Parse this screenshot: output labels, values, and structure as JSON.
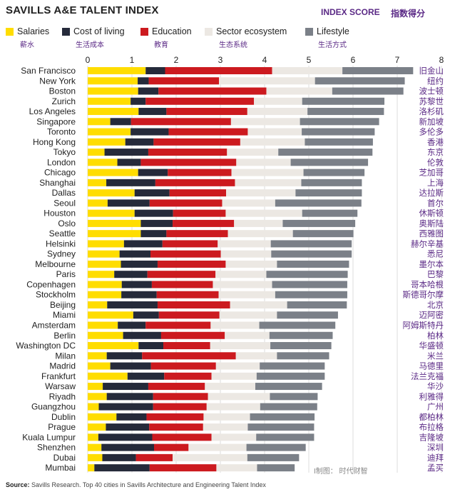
{
  "header": {
    "title": "SAVILLS A&E TALENT INDEX",
    "index_score": "INDEX SCORE",
    "index_score_cn": "指数得分"
  },
  "source": {
    "label": "Source:",
    "text": "Savills Research. Top 40 cities in Savills Architecture and Engineering Talent Index"
  },
  "watermark": "I制图： 时代财智",
  "chart_data": {
    "type": "bar",
    "orientation": "horizontal",
    "stacked": true,
    "title": "SAVILLS A&E TALENT INDEX",
    "xlabel": "INDEX SCORE",
    "xlim": [
      0,
      8
    ],
    "xticks": [
      "0",
      "1",
      "2",
      "3",
      "4",
      "5",
      "6",
      "7",
      "8"
    ],
    "grid": true,
    "legend": "top",
    "series": [
      {
        "name": "Salaries",
        "name_cn": "薪水",
        "color": "#ffdd00"
      },
      {
        "name": "Cost of living",
        "name_cn": "生活成本",
        "color": "#252a3a"
      },
      {
        "name": "Education",
        "name_cn": "教育",
        "color": "#cc1a1f"
      },
      {
        "name": "Sector ecosystem",
        "name_cn": "生态系统",
        "color": "#ece8e3"
      },
      {
        "name": "Lifestyle",
        "name_cn": "生活方式",
        "color": "#7b8088"
      }
    ],
    "categories": [
      {
        "city": "San Francisco",
        "cn": "旧金山",
        "values": [
          1.31,
          0.44,
          2.42,
          1.59,
          1.6
        ]
      },
      {
        "city": "New York",
        "cn": "纽约",
        "values": [
          1.13,
          0.25,
          1.59,
          2.17,
          2.03
        ]
      },
      {
        "city": "Boston",
        "cn": "波士顿",
        "values": [
          1.14,
          0.46,
          2.44,
          1.49,
          1.61
        ]
      },
      {
        "city": "Zurich",
        "cn": "苏黎世",
        "values": [
          0.97,
          0.34,
          2.45,
          1.09,
          1.86
        ]
      },
      {
        "city": "Los Angeles",
        "cn": "洛杉矶",
        "values": [
          1.15,
          0.63,
          1.83,
          1.36,
          1.73
        ]
      },
      {
        "city": "Singapore",
        "cn": "新加坡",
        "values": [
          0.51,
          0.47,
          2.26,
          1.56,
          1.79
        ]
      },
      {
        "city": "Toronto",
        "cn": "多伦多",
        "values": [
          0.97,
          0.86,
          1.79,
          1.22,
          1.65
        ]
      },
      {
        "city": "Hong Kong",
        "cn": "香港",
        "values": [
          0.85,
          0.64,
          1.96,
          1.46,
          1.54
        ]
      },
      {
        "city": "Tokyo",
        "cn": "东京",
        "values": [
          0.38,
          0.99,
          1.78,
          1.16,
          2.13
        ]
      },
      {
        "city": "London",
        "cn": "伦敦",
        "values": [
          0.67,
          0.53,
          2.16,
          1.23,
          1.75
        ]
      },
      {
        "city": "Chicago",
        "cn": "芝加哥",
        "values": [
          1.14,
          0.67,
          1.44,
          1.63,
          1.38
        ]
      },
      {
        "city": "Shanghai",
        "cn": "上海",
        "values": [
          0.42,
          1.11,
          1.8,
          1.5,
          1.37
        ]
      },
      {
        "city": "Dallas",
        "cn": "达拉斯",
        "values": [
          1.06,
          0.79,
          1.28,
          1.57,
          1.5
        ]
      },
      {
        "city": "Seoul",
        "cn": "首尔",
        "values": [
          0.45,
          0.95,
          1.64,
          1.2,
          1.95
        ]
      },
      {
        "city": "Houston",
        "cn": "休斯顿",
        "values": [
          1.06,
          0.87,
          1.19,
          1.73,
          1.25
        ]
      },
      {
        "city": "Oslo",
        "cn": "奥斯陆",
        "values": [
          1.2,
          0.72,
          1.39,
          1.1,
          1.64
        ]
      },
      {
        "city": "Seattle",
        "cn": "西雅图",
        "values": [
          1.2,
          0.58,
          1.39,
          1.47,
          1.37
        ]
      },
      {
        "city": "Helsinki",
        "cn": "赫尔辛基",
        "values": [
          0.82,
          0.87,
          1.25,
          1.2,
          1.83
        ]
      },
      {
        "city": "Sydney",
        "cn": "悉尼",
        "values": [
          0.72,
          0.7,
          1.59,
          1.14,
          1.82
        ]
      },
      {
        "city": "Melbourne",
        "cn": "墨尔本",
        "values": [
          0.75,
          0.83,
          1.54,
          1.16,
          1.63
        ]
      },
      {
        "city": "Paris",
        "cn": "巴黎",
        "values": [
          0.6,
          0.75,
          1.54,
          1.15,
          1.84
        ]
      },
      {
        "city": "Copenhagen",
        "cn": "哥本哈根",
        "values": [
          0.77,
          0.68,
          1.38,
          1.34,
          1.7
        ]
      },
      {
        "city": "Stockholm",
        "cn": "斯德哥尔摩",
        "values": [
          0.76,
          0.8,
          1.4,
          1.28,
          1.63
        ]
      },
      {
        "city": "Beijing",
        "cn": "北京",
        "values": [
          0.44,
          1.14,
          1.64,
          1.29,
          1.35
        ]
      },
      {
        "city": "Miami",
        "cn": "迈阿密",
        "values": [
          1.03,
          0.58,
          1.37,
          1.3,
          1.38
        ]
      },
      {
        "city": "Amsterdam",
        "cn": "阿姆斯特丹",
        "values": [
          0.68,
          0.63,
          1.47,
          1.1,
          1.72
        ]
      },
      {
        "city": "Berlin",
        "cn": "柏林",
        "values": [
          0.8,
          0.86,
          1.44,
          1.01,
          1.43
        ]
      },
      {
        "city": "Washington DC",
        "cn": "华盛顿",
        "values": [
          1.15,
          0.56,
          1.06,
          1.36,
          1.38
        ]
      },
      {
        "city": "Milan",
        "cn": "米兰",
        "values": [
          0.43,
          0.8,
          2.12,
          0.93,
          1.18
        ]
      },
      {
        "city": "Madrid",
        "cn": "马德里",
        "values": [
          0.51,
          0.92,
          1.47,
          0.99,
          1.47
        ]
      },
      {
        "city": "Frankfurt",
        "cn": "法兰克福",
        "values": [
          0.9,
          0.83,
          1.07,
          1.02,
          1.54
        ]
      },
      {
        "city": "Warsaw",
        "cn": "华沙",
        "values": [
          0.34,
          1.03,
          1.28,
          1.14,
          1.51
        ]
      },
      {
        "city": "Riyadh",
        "cn": "利雅得",
        "values": [
          0.43,
          1.05,
          1.24,
          1.4,
          1.08
        ]
      },
      {
        "city": "Guangzhou",
        "cn": "广州",
        "values": [
          0.25,
          1.23,
          1.21,
          1.21,
          1.29
        ]
      },
      {
        "city": "Dublin",
        "cn": "都柏林",
        "values": [
          0.65,
          0.68,
          1.29,
          1.05,
          1.46
        ]
      },
      {
        "city": "Prague",
        "cn": "布拉格",
        "values": [
          0.41,
          0.98,
          1.22,
          1.01,
          1.5
        ]
      },
      {
        "city": "Kuala Lumpur",
        "cn": "吉隆坡",
        "values": [
          0.24,
          1.22,
          1.34,
          1.01,
          1.31
        ]
      },
      {
        "city": "Shenzhen",
        "cn": "深圳",
        "values": [
          0.31,
          1.19,
          0.78,
          1.31,
          1.34
        ]
      },
      {
        "city": "Dubai",
        "cn": "迪拜",
        "values": [
          0.33,
          0.76,
          0.83,
          1.69,
          1.17
        ]
      },
      {
        "city": "Mumbai",
        "cn": "孟买",
        "values": [
          0.15,
          1.25,
          1.51,
          0.92,
          0.85
        ]
      }
    ]
  }
}
